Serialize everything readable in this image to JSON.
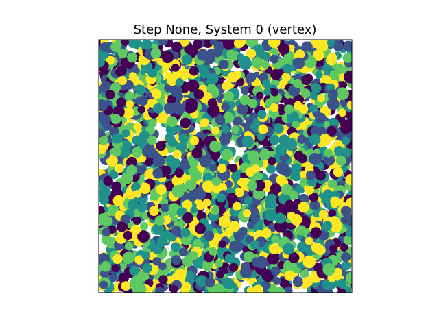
{
  "chart_data": {
    "type": "scatter",
    "title": "Step None, System 0 (vertex)",
    "xlabel": "",
    "ylabel": "",
    "xlim": [
      0,
      1
    ],
    "ylim": [
      0,
      1
    ],
    "grid": false,
    "axes_ticks": false,
    "colormap": "viridis",
    "color_range": [
      0,
      1
    ],
    "palette": [
      "#440154",
      "#3b528b",
      "#21918c",
      "#5ec962",
      "#fde725"
    ],
    "marker_sizes_data_units": [
      0.018,
      0.022
    ],
    "point_count": 2600,
    "seed": 7,
    "notes_visible": "dense cloud of circular vertex markers colored by viridis colormap"
  }
}
